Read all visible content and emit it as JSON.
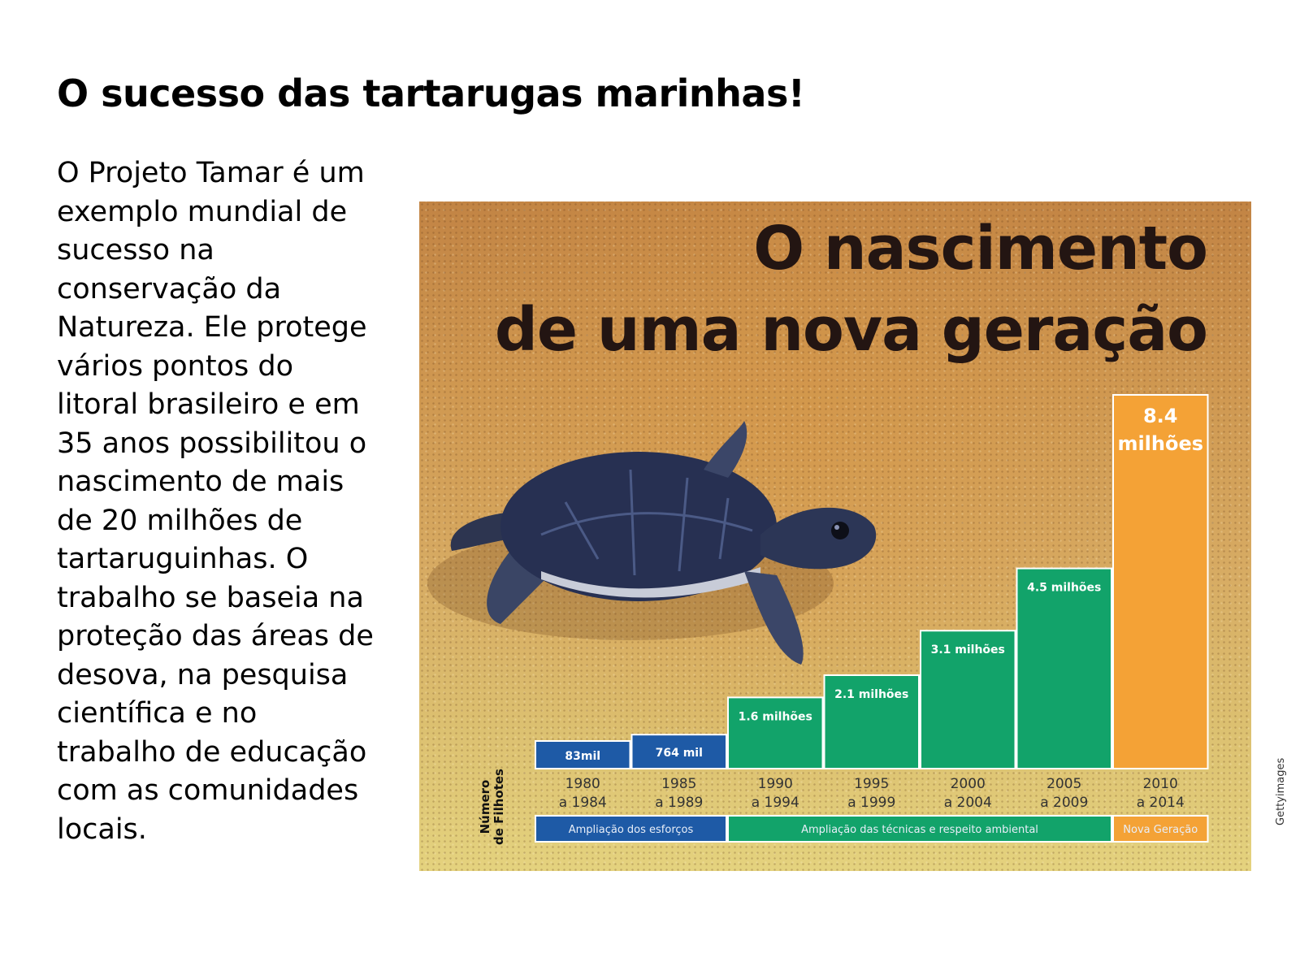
{
  "slide": {
    "title": "O sucesso das tartarugas marinhas!",
    "body": "O Projeto Tamar é um exemplo mundial de sucesso na conservação da Natureza. Ele protege vários pontos do litoral brasileiro e em 35 anos possibilitou o nascimento de mais de 20 milhões de tartaruguinhas. O trabalho se baseia na proteção das áreas de desova, na pesquisa científica e no trabalho de educação com as comunidades locais.",
    "image_credit": "Gettyimages"
  },
  "colors": {
    "blue": "#1e5aa6",
    "green": "#12a36a",
    "orange": "#f4a236",
    "heading": "#231512"
  },
  "chart_data": {
    "type": "bar",
    "title_lines": [
      "O nascimento",
      "de uma nova geração"
    ],
    "ylabel_lines": [
      "Número",
      "de Filhotes"
    ],
    "categories": [
      [
        "1980",
        "a 1984"
      ],
      [
        "1985",
        "a 1989"
      ],
      [
        "1990",
        "a 1994"
      ],
      [
        "1995",
        "a 1999"
      ],
      [
        "2000",
        "a 2004"
      ],
      [
        "2005",
        "a 2009"
      ],
      [
        "2010",
        "a 2014"
      ]
    ],
    "values": [
      83000,
      764000,
      1600000,
      2100000,
      3100000,
      4500000,
      8400000
    ],
    "value_labels": [
      [
        "83mil"
      ],
      [
        "764 mil"
      ],
      [
        "1.6 milhões"
      ],
      [
        "2.1 milhões"
      ],
      [
        "3.1 milhões"
      ],
      [
        "4.5 milhões"
      ],
      [
        "8.4",
        "milhões"
      ]
    ],
    "bar_colors": [
      "blue",
      "blue",
      "green",
      "green",
      "green",
      "green",
      "orange"
    ],
    "phases": [
      {
        "label": "Ampliação dos esforços",
        "span": [
          0,
          1
        ],
        "color": "blue"
      },
      {
        "label": "Ampliação das técnicas e respeito ambiental",
        "span": [
          2,
          5
        ],
        "color": "green"
      },
      {
        "label": "Nova Geração",
        "span": [
          6,
          6
        ],
        "color": "orange"
      }
    ],
    "ylim": [
      0,
      8400000
    ],
    "grid": false,
    "legend": "none"
  }
}
